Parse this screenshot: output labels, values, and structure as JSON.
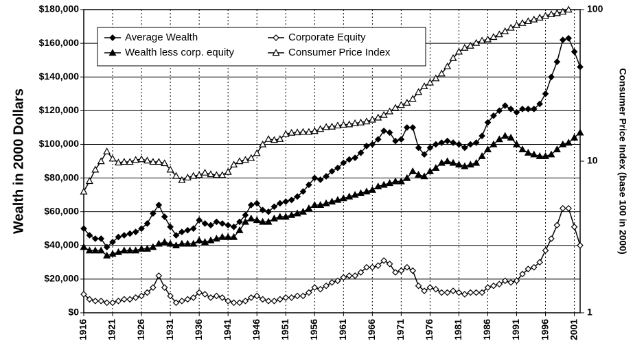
{
  "chart_data": {
    "type": "line",
    "y_label": "Wealth in 2000 Dollars",
    "y2_label": "Consumer Price Index (base 100 in 2000)",
    "x": [
      1916,
      1917,
      1918,
      1919,
      1920,
      1921,
      1922,
      1923,
      1924,
      1925,
      1926,
      1927,
      1928,
      1929,
      1930,
      1931,
      1932,
      1933,
      1934,
      1935,
      1936,
      1937,
      1938,
      1939,
      1940,
      1941,
      1942,
      1943,
      1944,
      1945,
      1946,
      1947,
      1948,
      1949,
      1950,
      1951,
      1952,
      1953,
      1954,
      1955,
      1956,
      1957,
      1958,
      1959,
      1960,
      1961,
      1962,
      1963,
      1964,
      1965,
      1966,
      1967,
      1968,
      1969,
      1970,
      1971,
      1972,
      1973,
      1974,
      1975,
      1976,
      1977,
      1978,
      1979,
      1980,
      1981,
      1982,
      1983,
      1984,
      1985,
      1986,
      1987,
      1988,
      1989,
      1990,
      1991,
      1992,
      1993,
      1994,
      1995,
      1996,
      1997,
      1998,
      1999,
      2000,
      2001,
      2002
    ],
    "series": [
      {
        "name": "Average Wealth",
        "color": "#000000",
        "marker": "diamond",
        "filled": true,
        "values": [
          50000,
          46000,
          44000,
          44000,
          39000,
          42000,
          45000,
          46000,
          47000,
          48000,
          50000,
          53000,
          59000,
          64000,
          57000,
          51000,
          46000,
          48000,
          49000,
          50000,
          55000,
          53000,
          52000,
          54000,
          53000,
          52000,
          51000,
          54000,
          58000,
          64000,
          65000,
          61000,
          60000,
          63000,
          65000,
          66000,
          67000,
          69000,
          72000,
          76000,
          80000,
          79000,
          81000,
          84000,
          86000,
          89000,
          91000,
          92000,
          95000,
          99000,
          100000,
          103000,
          108000,
          107000,
          102000,
          103000,
          110000,
          110000,
          98000,
          94000,
          98000,
          100000,
          101000,
          102000,
          101000,
          100000,
          98000,
          100000,
          101000,
          105000,
          113000,
          117000,
          120000,
          123000,
          121000,
          119000,
          121000,
          121000,
          121000,
          124000,
          130000,
          140000,
          149000,
          162000,
          163000,
          155000,
          146000
        ]
      },
      {
        "name": "Corporate Equity",
        "color": "#000000",
        "marker": "diamond",
        "filled": false,
        "values": [
          11000,
          8000,
          7000,
          7000,
          6000,
          6000,
          7000,
          8000,
          8000,
          9000,
          10000,
          12000,
          15000,
          22000,
          15000,
          10000,
          6000,
          7000,
          8000,
          9000,
          12000,
          11000,
          9000,
          10000,
          9000,
          7000,
          6000,
          6000,
          7000,
          9000,
          10000,
          8000,
          7000,
          7000,
          8000,
          9000,
          9000,
          10000,
          10000,
          12000,
          15000,
          14000,
          16000,
          18000,
          19000,
          21000,
          22000,
          22000,
          24000,
          27000,
          27000,
          28000,
          31000,
          29000,
          24000,
          25000,
          27000,
          25000,
          16000,
          13000,
          15000,
          14000,
          12000,
          12000,
          13000,
          12000,
          11000,
          12000,
          12000,
          12000,
          15000,
          16000,
          17000,
          19000,
          18000,
          19000,
          23000,
          26000,
          27000,
          30000,
          37000,
          44000,
          52000,
          62000,
          62000,
          51000,
          40000
        ]
      },
      {
        "name": "Wealth less corp. equity",
        "color": "#000000",
        "marker": "triangle",
        "filled": true,
        "values": [
          39000,
          37000,
          37000,
          37000,
          34000,
          35000,
          36000,
          37000,
          37000,
          37000,
          38000,
          38000,
          39000,
          41000,
          42000,
          41000,
          40000,
          41000,
          41000,
          41000,
          43000,
          42000,
          43000,
          44000,
          45000,
          45000,
          45000,
          49000,
          54000,
          56000,
          55000,
          54000,
          54000,
          56000,
          57000,
          57000,
          58000,
          59000,
          60000,
          62000,
          64000,
          64000,
          65000,
          66000,
          67000,
          68000,
          69000,
          70000,
          71000,
          72000,
          73000,
          75000,
          76000,
          77000,
          78000,
          78000,
          80000,
          84000,
          82000,
          81000,
          84000,
          86000,
          89000,
          90000,
          89000,
          88000,
          87000,
          88000,
          89000,
          93000,
          97000,
          100000,
          103000,
          105000,
          104000,
          100000,
          97000,
          95000,
          94000,
          93000,
          93000,
          94000,
          97000,
          100000,
          101000,
          104000,
          107000
        ]
      },
      {
        "name": "Consumer Price Index",
        "color": "#000000",
        "marker": "triangle",
        "filled": false,
        "axis": "y2",
        "values": [
          6.3,
          7.4,
          8.8,
          10.0,
          11.6,
          10.4,
          9.8,
          9.9,
          9.9,
          10.2,
          10.3,
          10.1,
          9.9,
          9.9,
          9.7,
          8.8,
          8.0,
          7.5,
          7.8,
          8.0,
          8.1,
          8.4,
          8.2,
          8.1,
          8.1,
          8.5,
          9.5,
          10.0,
          10.2,
          10.5,
          11.3,
          12.9,
          14.0,
          13.8,
          14.0,
          15.1,
          15.4,
          15.5,
          15.6,
          15.6,
          15.8,
          16.3,
          16.8,
          16.9,
          17.2,
          17.4,
          17.5,
          17.8,
          18.0,
          18.3,
          18.8,
          19.4,
          20.2,
          21.3,
          22.5,
          23.5,
          24.3,
          25.8,
          28.6,
          31.2,
          33.0,
          35.2,
          37.9,
          42.2,
          47.9,
          52.8,
          56.0,
          57.8,
          60.3,
          62.5,
          63.6,
          66.0,
          68.7,
          72.0,
          75.9,
          79.1,
          81.5,
          83.9,
          86.1,
          88.5,
          91.1,
          93.2,
          94.7,
          96.7,
          100.0,
          null,
          null
        ]
      }
    ],
    "xlim": [
      1916,
      2002
    ],
    "xticks": [
      1916,
      1921,
      1926,
      1931,
      1936,
      1941,
      1946,
      1951,
      1956,
      1961,
      1966,
      1971,
      1976,
      1981,
      1986,
      1991,
      1996,
      2001
    ],
    "ylim": [
      0,
      180000
    ],
    "yticks": [
      {
        "value": 0,
        "label": "$0"
      },
      {
        "value": 20000,
        "label": "$20,000"
      },
      {
        "value": 40000,
        "label": "$40,000"
      },
      {
        "value": 60000,
        "label": "$60,000"
      },
      {
        "value": 80000,
        "label": "$80,000"
      },
      {
        "value": 100000,
        "label": "$100,000"
      },
      {
        "value": 120000,
        "label": "$120,000"
      },
      {
        "value": 140000,
        "label": "$140,000"
      },
      {
        "value": 160000,
        "label": "$160,000"
      },
      {
        "value": 180000,
        "label": "$180,000"
      }
    ],
    "y2lim": [
      1,
      100
    ],
    "y2ticks": [
      1,
      10,
      100
    ],
    "y2scale": "log",
    "grid": true,
    "legend": "upper left"
  }
}
